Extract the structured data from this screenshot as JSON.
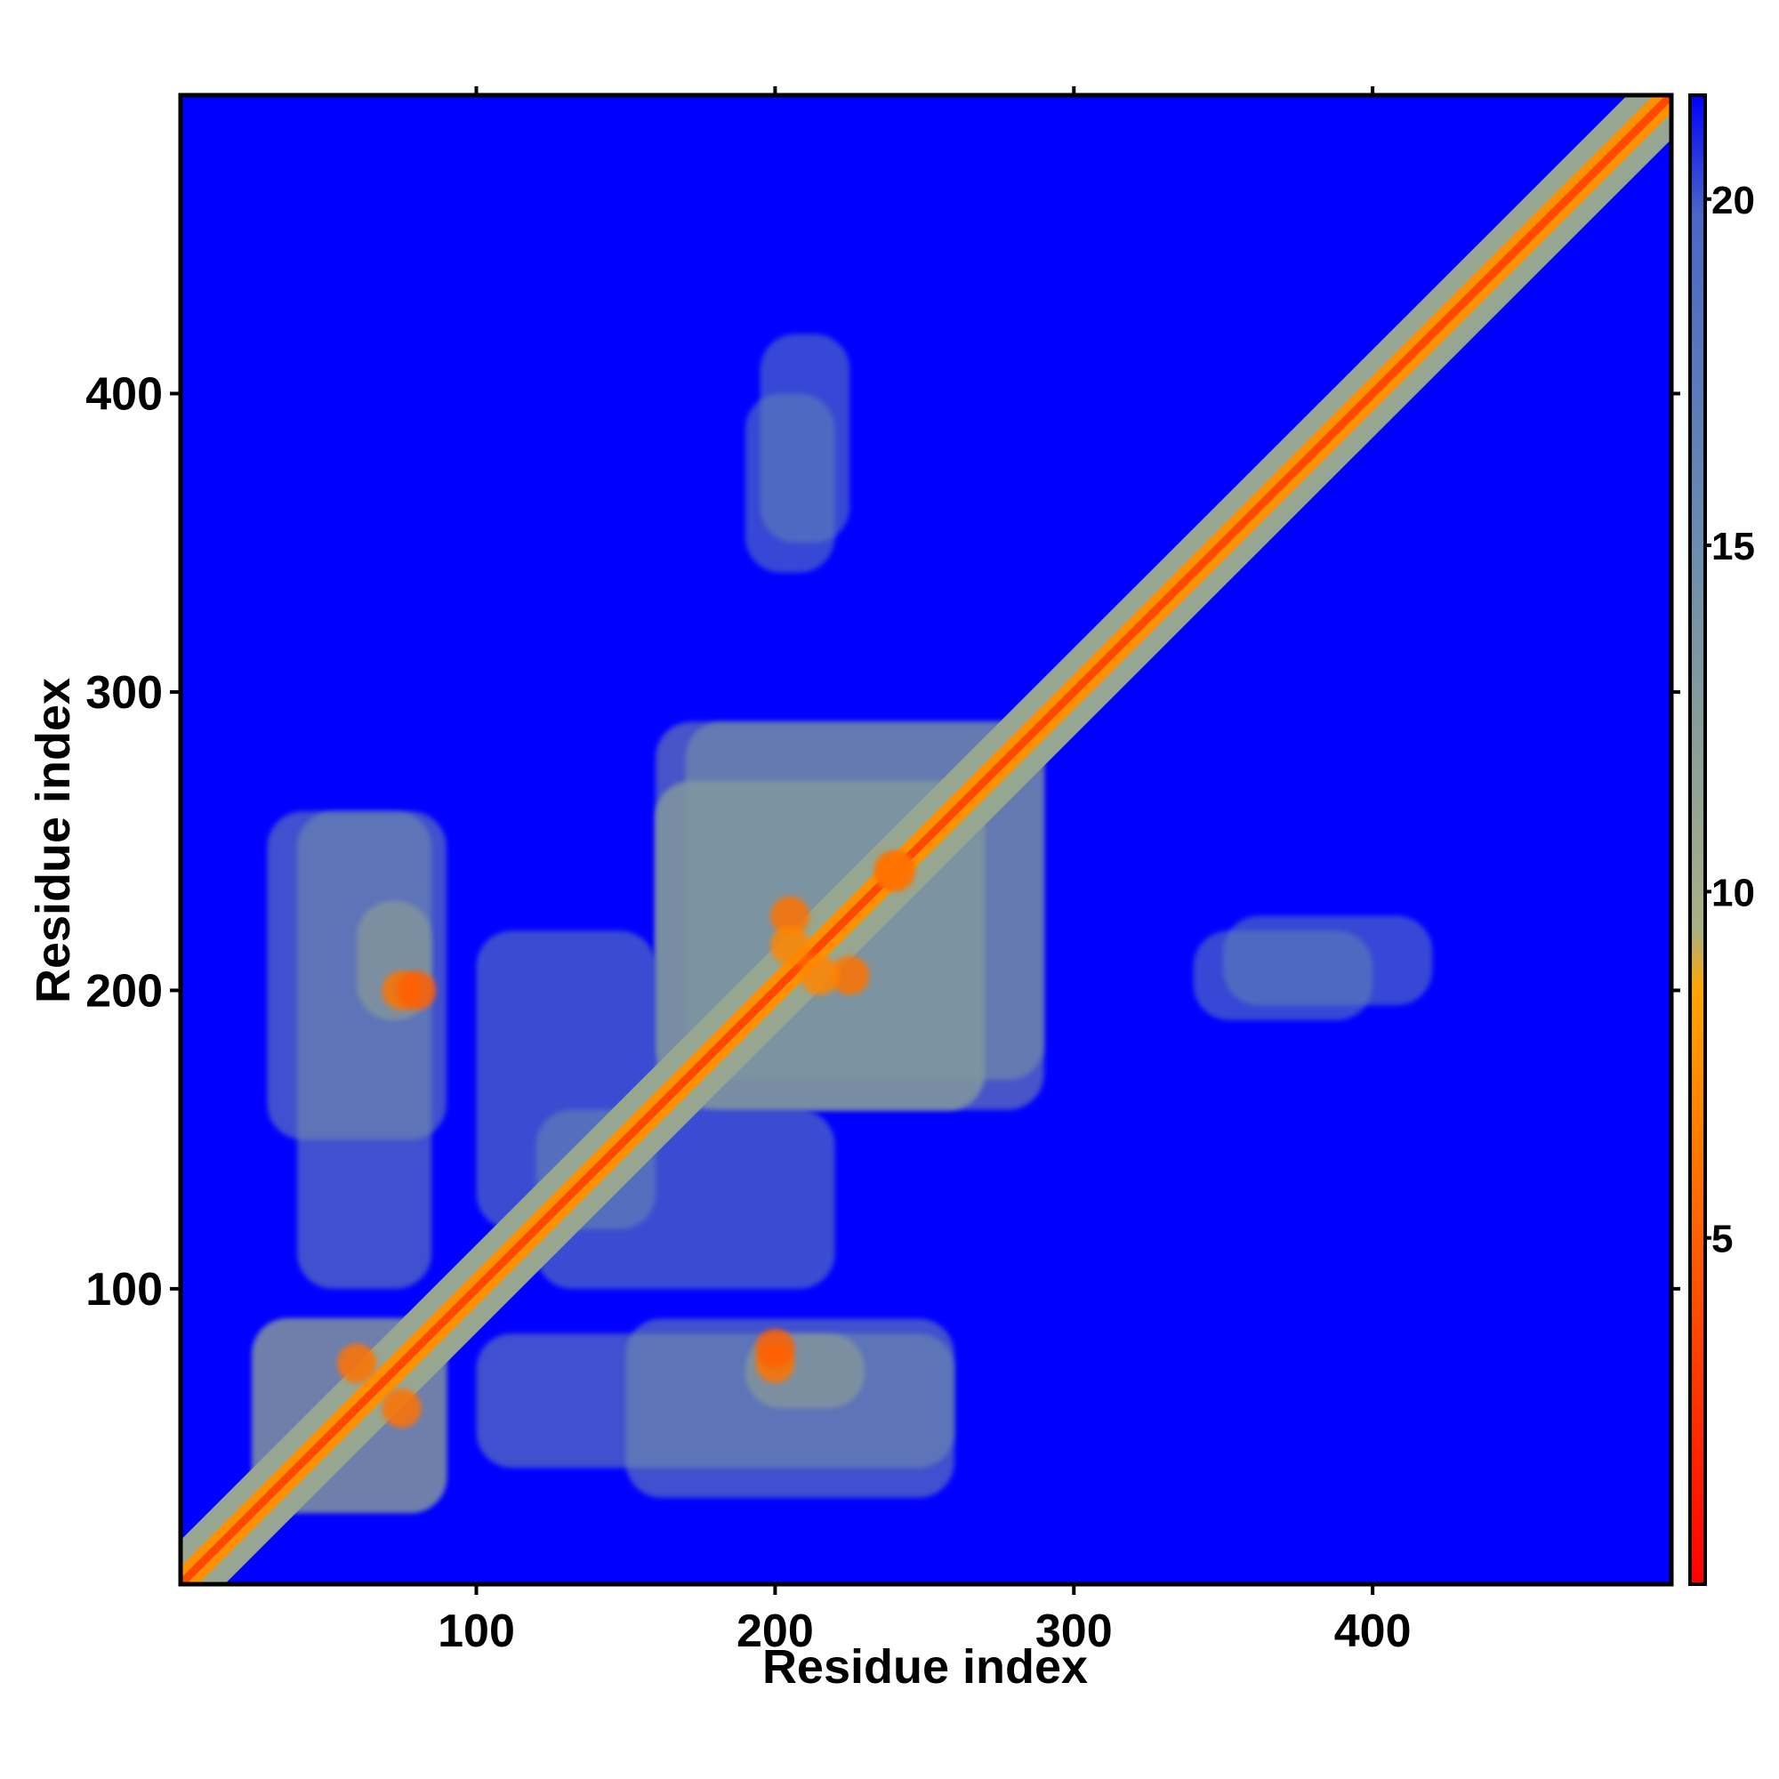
{
  "chart_data": {
    "type": "heatmap",
    "title": "",
    "xlabel": "Residue index",
    "ylabel": "Residue index",
    "xlim": [
      1,
      500
    ],
    "ylim": [
      1,
      500
    ],
    "x_ticks": [
      "100",
      "200",
      "300",
      "400"
    ],
    "y_ticks": [
      "100",
      "200",
      "300",
      "400"
    ],
    "x_tick_values": [
      100,
      200,
      300,
      400
    ],
    "y_tick_values": [
      100,
      200,
      300,
      400
    ],
    "colorbar": {
      "ticks": [
        "5",
        "10",
        "15",
        "20"
      ],
      "tick_values": [
        5,
        10,
        15,
        20
      ],
      "range": [
        0,
        21.5
      ],
      "colors": [
        "#ff0000",
        "#ff6a00",
        "#ffa500",
        "#9caf88",
        "#6a8caf",
        "#0000ff"
      ]
    },
    "description_values": {
      "background_value": 21.5,
      "diagonal_value": 3.8
    },
    "contact_blocks": [
      {
        "x": [
          25,
          90
        ],
        "y": [
          25,
          90
        ],
        "value": 12
      },
      {
        "x": [
          160,
          270
        ],
        "y": [
          160,
          270
        ],
        "value": 12
      },
      {
        "x": [
          30,
          90
        ],
        "y": [
          150,
          260
        ],
        "value": 14
      },
      {
        "x": [
          160,
          290
        ],
        "y": [
          170,
          290
        ],
        "value": 13
      },
      {
        "x": [
          100,
          260
        ],
        "y": [
          40,
          85
        ],
        "value": 14
      },
      {
        "x": [
          120,
          220
        ],
        "y": [
          100,
          160
        ],
        "value": 15
      },
      {
        "x": [
          190,
          230
        ],
        "y": [
          60,
          85
        ],
        "value": 11
      },
      {
        "x": [
          340,
          400
        ],
        "y": [
          190,
          220
        ],
        "value": 16
      },
      {
        "x": [
          195,
          225
        ],
        "y": [
          350,
          420
        ],
        "value": 16
      }
    ],
    "hotspots": [
      {
        "x": 75,
        "y": 200,
        "value": 6
      },
      {
        "x": 60,
        "y": 75,
        "value": 6
      },
      {
        "x": 200,
        "y": 80,
        "value": 5
      },
      {
        "x": 205,
        "y": 225,
        "value": 6
      },
      {
        "x": 240,
        "y": 240,
        "value": 6
      },
      {
        "x": 215,
        "y": 205,
        "value": 7
      }
    ]
  }
}
